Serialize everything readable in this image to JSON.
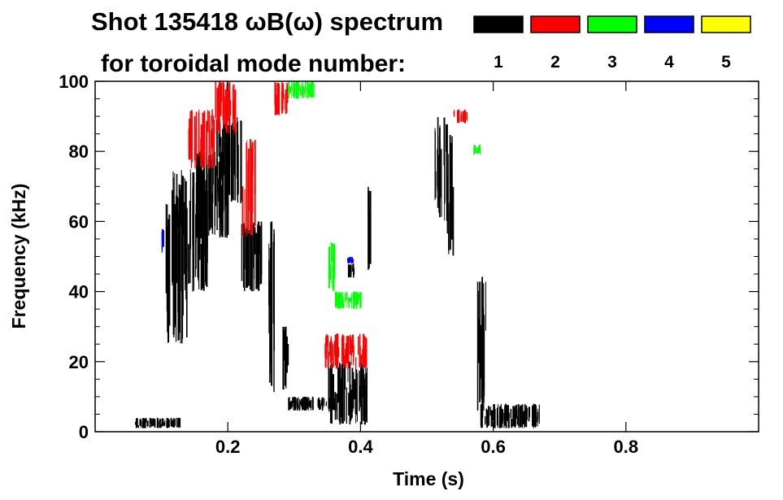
{
  "chart_data": {
    "type": "heatmap",
    "title": "Shot 135418 ωB(ω) spectrum",
    "subtitle": "for toroidal mode number:",
    "xlabel": "Time (s)",
    "ylabel": "Frequency (kHz)",
    "xlim": [
      0.0,
      1.0
    ],
    "ylim": [
      0,
      100
    ],
    "x_ticks": [
      "0.2",
      "0.4",
      "0.6",
      "0.8"
    ],
    "x_tick_values": [
      0.2,
      0.4,
      0.6,
      0.8
    ],
    "y_ticks": [
      "0",
      "20",
      "40",
      "60",
      "80",
      "100"
    ],
    "y_tick_values": [
      0,
      20,
      40,
      60,
      80,
      100
    ],
    "legend_placement": "top-right",
    "legend": [
      {
        "label": "1",
        "color": "#000000"
      },
      {
        "label": "2",
        "color": "#ff0000"
      },
      {
        "label": "3",
        "color": "#00ff00"
      },
      {
        "label": "4",
        "color": "#0000ff"
      },
      {
        "label": "5",
        "color": "#ffff00"
      }
    ],
    "series": [
      {
        "mode": "1",
        "color": "#000000",
        "regions": [
          {
            "t": [
              0.06,
              0.13
            ],
            "f": [
              1,
              4
            ]
          },
          {
            "t": [
              0.105,
              0.14
            ],
            "f": [
              25,
              65
            ]
          },
          {
            "t": [
              0.115,
              0.17
            ],
            "f": [
              40,
              75
            ]
          },
          {
            "t": [
              0.15,
              0.2
            ],
            "f": [
              55,
              80
            ]
          },
          {
            "t": [
              0.18,
              0.22
            ],
            "f": [
              65,
              90
            ]
          },
          {
            "t": [
              0.22,
              0.25
            ],
            "f": [
              40,
              60
            ]
          },
          {
            "t": [
              0.26,
              0.27
            ],
            "f": [
              10,
              60
            ]
          },
          {
            "t": [
              0.28,
              0.29
            ],
            "f": [
              12,
              30
            ]
          },
          {
            "t": [
              0.29,
              0.36
            ],
            "f": [
              6,
              10
            ]
          },
          {
            "t": [
              0.35,
              0.41
            ],
            "f": [
              2,
              20
            ]
          },
          {
            "t": [
              0.38,
              0.39
            ],
            "f": [
              44,
              48
            ]
          },
          {
            "t": [
              0.41,
              0.415
            ],
            "f": [
              45,
              70
            ]
          },
          {
            "t": [
              0.51,
              0.53
            ],
            "f": [
              60,
              90
            ]
          },
          {
            "t": [
              0.53,
              0.54
            ],
            "f": [
              50,
              85
            ]
          },
          {
            "t": [
              0.575,
              0.59
            ],
            "f": [
              5,
              45
            ]
          },
          {
            "t": [
              0.58,
              0.67
            ],
            "f": [
              1,
              8
            ]
          }
        ]
      },
      {
        "mode": "2",
        "color": "#ff0000",
        "regions": [
          {
            "t": [
              0.14,
              0.18
            ],
            "f": [
              75,
              92
            ]
          },
          {
            "t": [
              0.18,
              0.21
            ],
            "f": [
              85,
              100
            ]
          },
          {
            "t": [
              0.27,
              0.29
            ],
            "f": [
              90,
              100
            ]
          },
          {
            "t": [
              0.345,
              0.41
            ],
            "f": [
              18,
              28
            ]
          },
          {
            "t": [
              0.22,
              0.24
            ],
            "f": [
              55,
              85
            ]
          },
          {
            "t": [
              0.54,
              0.56
            ],
            "f": [
              88,
              92
            ]
          }
        ]
      },
      {
        "mode": "3",
        "color": "#00ff00",
        "regions": [
          {
            "t": [
              0.36,
              0.4
            ],
            "f": [
              35,
              40
            ]
          },
          {
            "t": [
              0.35,
              0.36
            ],
            "f": [
              40,
              55
            ]
          },
          {
            "t": [
              0.29,
              0.33
            ],
            "f": [
              95,
              100
            ]
          },
          {
            "t": [
              0.57,
              0.58
            ],
            "f": [
              79,
              82
            ]
          }
        ]
      },
      {
        "mode": "4",
        "color": "#0000ff",
        "regions": [
          {
            "t": [
              0.1,
              0.105
            ],
            "f": [
              51,
              58
            ]
          },
          {
            "t": [
              0.38,
              0.39
            ],
            "f": [
              48,
              50
            ]
          }
        ]
      },
      {
        "mode": "5",
        "color": "#ffff00",
        "regions": []
      }
    ]
  }
}
